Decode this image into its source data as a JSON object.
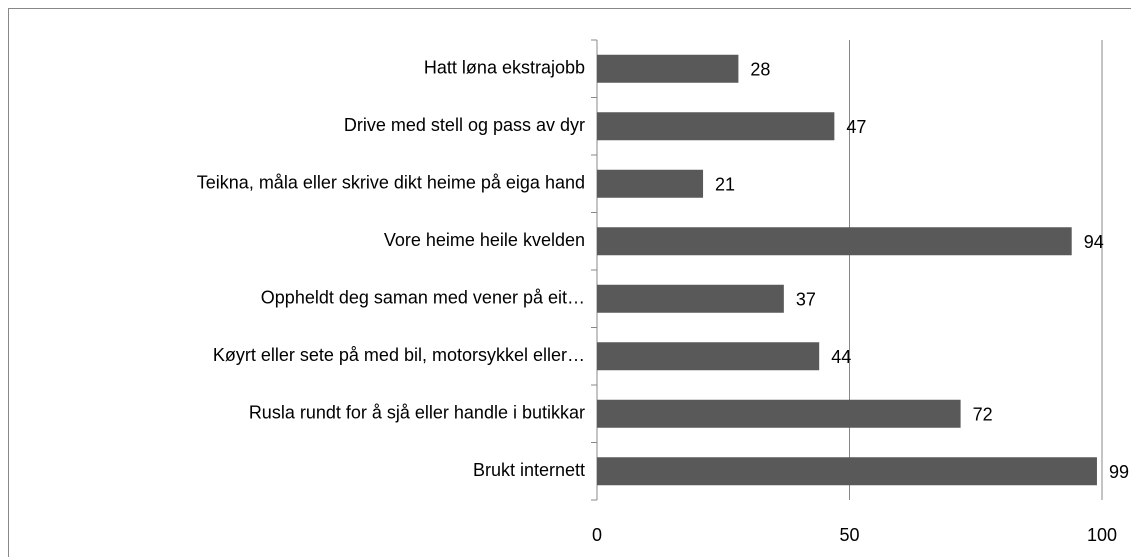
{
  "chart_data": {
    "type": "bar",
    "orientation": "horizontal",
    "categories": [
      "Hatt løna ekstrajobb",
      "Drive med stell og pass av dyr",
      "Teikna, måla eller skrive dikt heime på eiga hand",
      "Vore heime heile kvelden",
      "Oppheldt deg saman med vener på eit…",
      "Køyrt eller sete på med bil, motorsykkel eller…",
      "Rusla rundt for å sjå eller handle i butikkar",
      "Brukt internett"
    ],
    "values": [
      28,
      47,
      21,
      94,
      37,
      44,
      72,
      99
    ],
    "color": "#595959",
    "xlim": [
      0,
      100
    ],
    "xticks": [
      0,
      50,
      100
    ],
    "grid": true
  }
}
